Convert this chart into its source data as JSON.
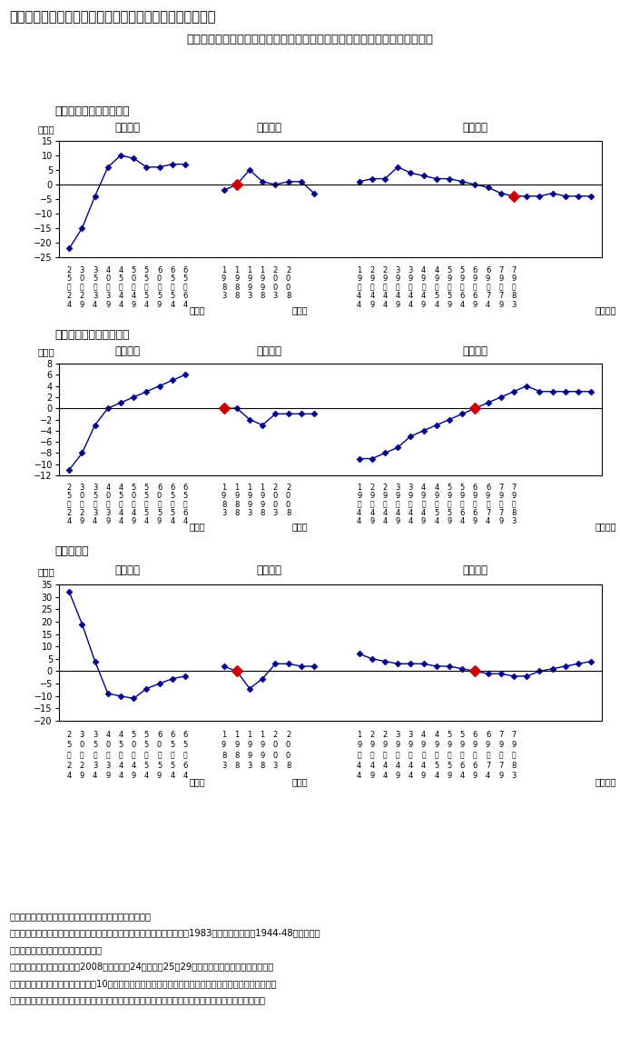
{
  "title": "第２－３－４図　入居形態別割合に関するコーホート分析",
  "subtitle": "年齢効果によると、嗜好は借家から持ち家（一戸建て又は共同住宅）に変化",
  "panel1_label": "（１）持ち家・一戸建て",
  "panel2_label": "（２）持ち家・共同住宅",
  "panel3_label": "（３）借家",
  "panel1": {
    "ylim": [
      -25,
      15
    ],
    "yticks": [
      -25,
      -20,
      -15,
      -10,
      -5,
      0,
      5,
      10,
      15
    ],
    "age_y": [
      -22,
      -15,
      -4,
      6,
      10,
      9,
      6,
      6,
      7,
      7
    ],
    "era_y": [
      -2,
      0,
      5,
      1,
      0,
      1,
      1,
      -3
    ],
    "era_ref_idx": 1,
    "cohort_y": [
      1,
      2,
      2,
      6,
      4,
      3,
      2,
      2,
      1,
      0,
      -1,
      -3,
      -4,
      -4,
      -4,
      -3,
      -4,
      -4,
      -4
    ],
    "cohort_ref_idx": 12
  },
  "panel2": {
    "ylim": [
      -12,
      8
    ],
    "yticks": [
      -12,
      -10,
      -8,
      -6,
      -4,
      -2,
      0,
      2,
      4,
      6,
      8
    ],
    "age_y": [
      -11,
      -8,
      -3,
      0,
      1,
      2,
      3,
      4,
      5,
      6
    ],
    "era_y": [
      0,
      0,
      -2,
      -3,
      -1,
      -1,
      -1,
      -1
    ],
    "era_ref_idx": 0,
    "cohort_y": [
      -9,
      -9,
      -8,
      -7,
      -5,
      -4,
      -3,
      -2,
      -1,
      0,
      1,
      2,
      3,
      4,
      3,
      3,
      3,
      3,
      3
    ],
    "cohort_ref_idx": 9
  },
  "panel3": {
    "ylim": [
      -20,
      35
    ],
    "yticks": [
      -20,
      -15,
      -10,
      -5,
      0,
      5,
      10,
      15,
      20,
      25,
      30,
      35
    ],
    "age_y": [
      32,
      19,
      4,
      -9,
      -10,
      -11,
      -7,
      -5,
      -3,
      -2
    ],
    "era_y": [
      2,
      0,
      -7,
      -3,
      3,
      3,
      2,
      2
    ],
    "era_ref_idx": 1,
    "cohort_y": [
      7,
      5,
      4,
      3,
      3,
      3,
      2,
      2,
      1,
      0,
      -1,
      -1,
      -2,
      -2,
      0,
      1,
      2,
      3,
      4
    ],
    "cohort_ref_idx": 9
  },
  "age_xtick_rows": [
    [
      "2",
      "3",
      "3",
      "4",
      "4",
      "5",
      "5",
      "6",
      "6",
      "6"
    ],
    [
      "5",
      "0",
      "5",
      "0",
      "5",
      "0",
      "5",
      "0",
      "5",
      "5"
    ],
    [
      "S",
      "S",
      "S",
      "S",
      "S",
      "S",
      "S",
      "S",
      "S",
      "S"
    ],
    [
      "2",
      "2",
      "3",
      "3",
      "4",
      "4",
      "5",
      "5",
      "5",
      "6"
    ],
    [
      "4",
      "9",
      "4",
      "9",
      "4",
      "9",
      "4",
      "9",
      "4",
      "4"
    ]
  ],
  "era_xtick_rows": [
    [
      "1",
      "1",
      "1",
      "1",
      "2",
      "2"
    ],
    [
      "9",
      "9",
      "9",
      "9",
      "0",
      "0"
    ],
    [
      "8",
      "8",
      "9",
      "9",
      "0",
      "0"
    ],
    [
      "3",
      "8",
      "3",
      "8",
      "3",
      "8"
    ]
  ],
  "cohort_xtick_rows": [
    [
      "1",
      "2",
      "2",
      "3",
      "3",
      "4",
      "4",
      "5",
      "5",
      "6",
      "6",
      "7",
      "7"
    ],
    [
      "9",
      "9",
      "9",
      "9",
      "9",
      "9",
      "9",
      "9",
      "9",
      "9",
      "9",
      "9",
      "9"
    ],
    [
      "4",
      "4",
      "4",
      "4",
      "4",
      "4",
      "4",
      "4",
      "4",
      "4",
      "4",
      "4",
      "4"
    ],
    [
      "9",
      "4",
      "9",
      "4",
      "9",
      "4",
      "9",
      "4",
      "9",
      "4",
      "9",
      "4",
      "9"
    ]
  ],
  "note_lines": [
    "（備考）１．総務省「住宅・土地統計調査」により作成。",
    "　　　　２．年齢効果は年齢効果の平均を基準として表示し、時代効果は1983年を、世代効果は1944-48年生まれの",
    "　　　　　　世代を基準として表示。",
    "　　　　３．制約条件として2008年時点での24歳以下と25～29歳の世代効果を同一として分析。",
    "　　　　４．調査時点から過去４年10か月以内に入居した普通世帯における主世帯の形態別、年齢別割合。",
    "　　　　５．一戸建：一戸建・長屋建、共同住宅：共同住宅・その他、借家：公団・公社・民営の借家。"
  ],
  "line_color": "#00008B",
  "ref_color": "#CC0000",
  "bg_color": "#FFFFFF"
}
